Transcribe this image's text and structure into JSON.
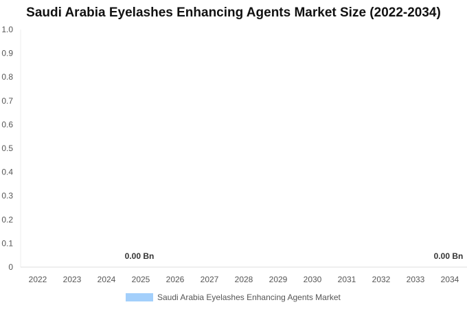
{
  "chart_data": {
    "type": "bar",
    "title": "Saudi Arabia Eyelashes Enhancing Agents Market Size (2022-2034)",
    "categories": [
      "2022",
      "2023",
      "2024",
      "2025",
      "2026",
      "2027",
      "2028",
      "2029",
      "2030",
      "2031",
      "2032",
      "2033",
      "2034"
    ],
    "series": [
      {
        "name": "Saudi Arabia Eyelashes Enhancing Agents Market",
        "values": [
          0,
          0,
          0,
          0,
          0,
          0,
          0,
          0,
          0,
          0,
          0,
          0,
          0
        ],
        "color": "#a3cffb"
      }
    ],
    "data_labels": [
      {
        "category": "2025",
        "text": "0.00 Bn"
      },
      {
        "category": "2034",
        "text": "0.00 Bn"
      }
    ],
    "yticks": [
      "0",
      "0.1",
      "0.2",
      "0.3",
      "0.4",
      "0.5",
      "0.6",
      "0.7",
      "0.8",
      "0.9",
      "1.0"
    ],
    "ylim": [
      0,
      1
    ],
    "xlabel": "",
    "ylabel": "",
    "grid": false,
    "legend_position": "bottom"
  }
}
